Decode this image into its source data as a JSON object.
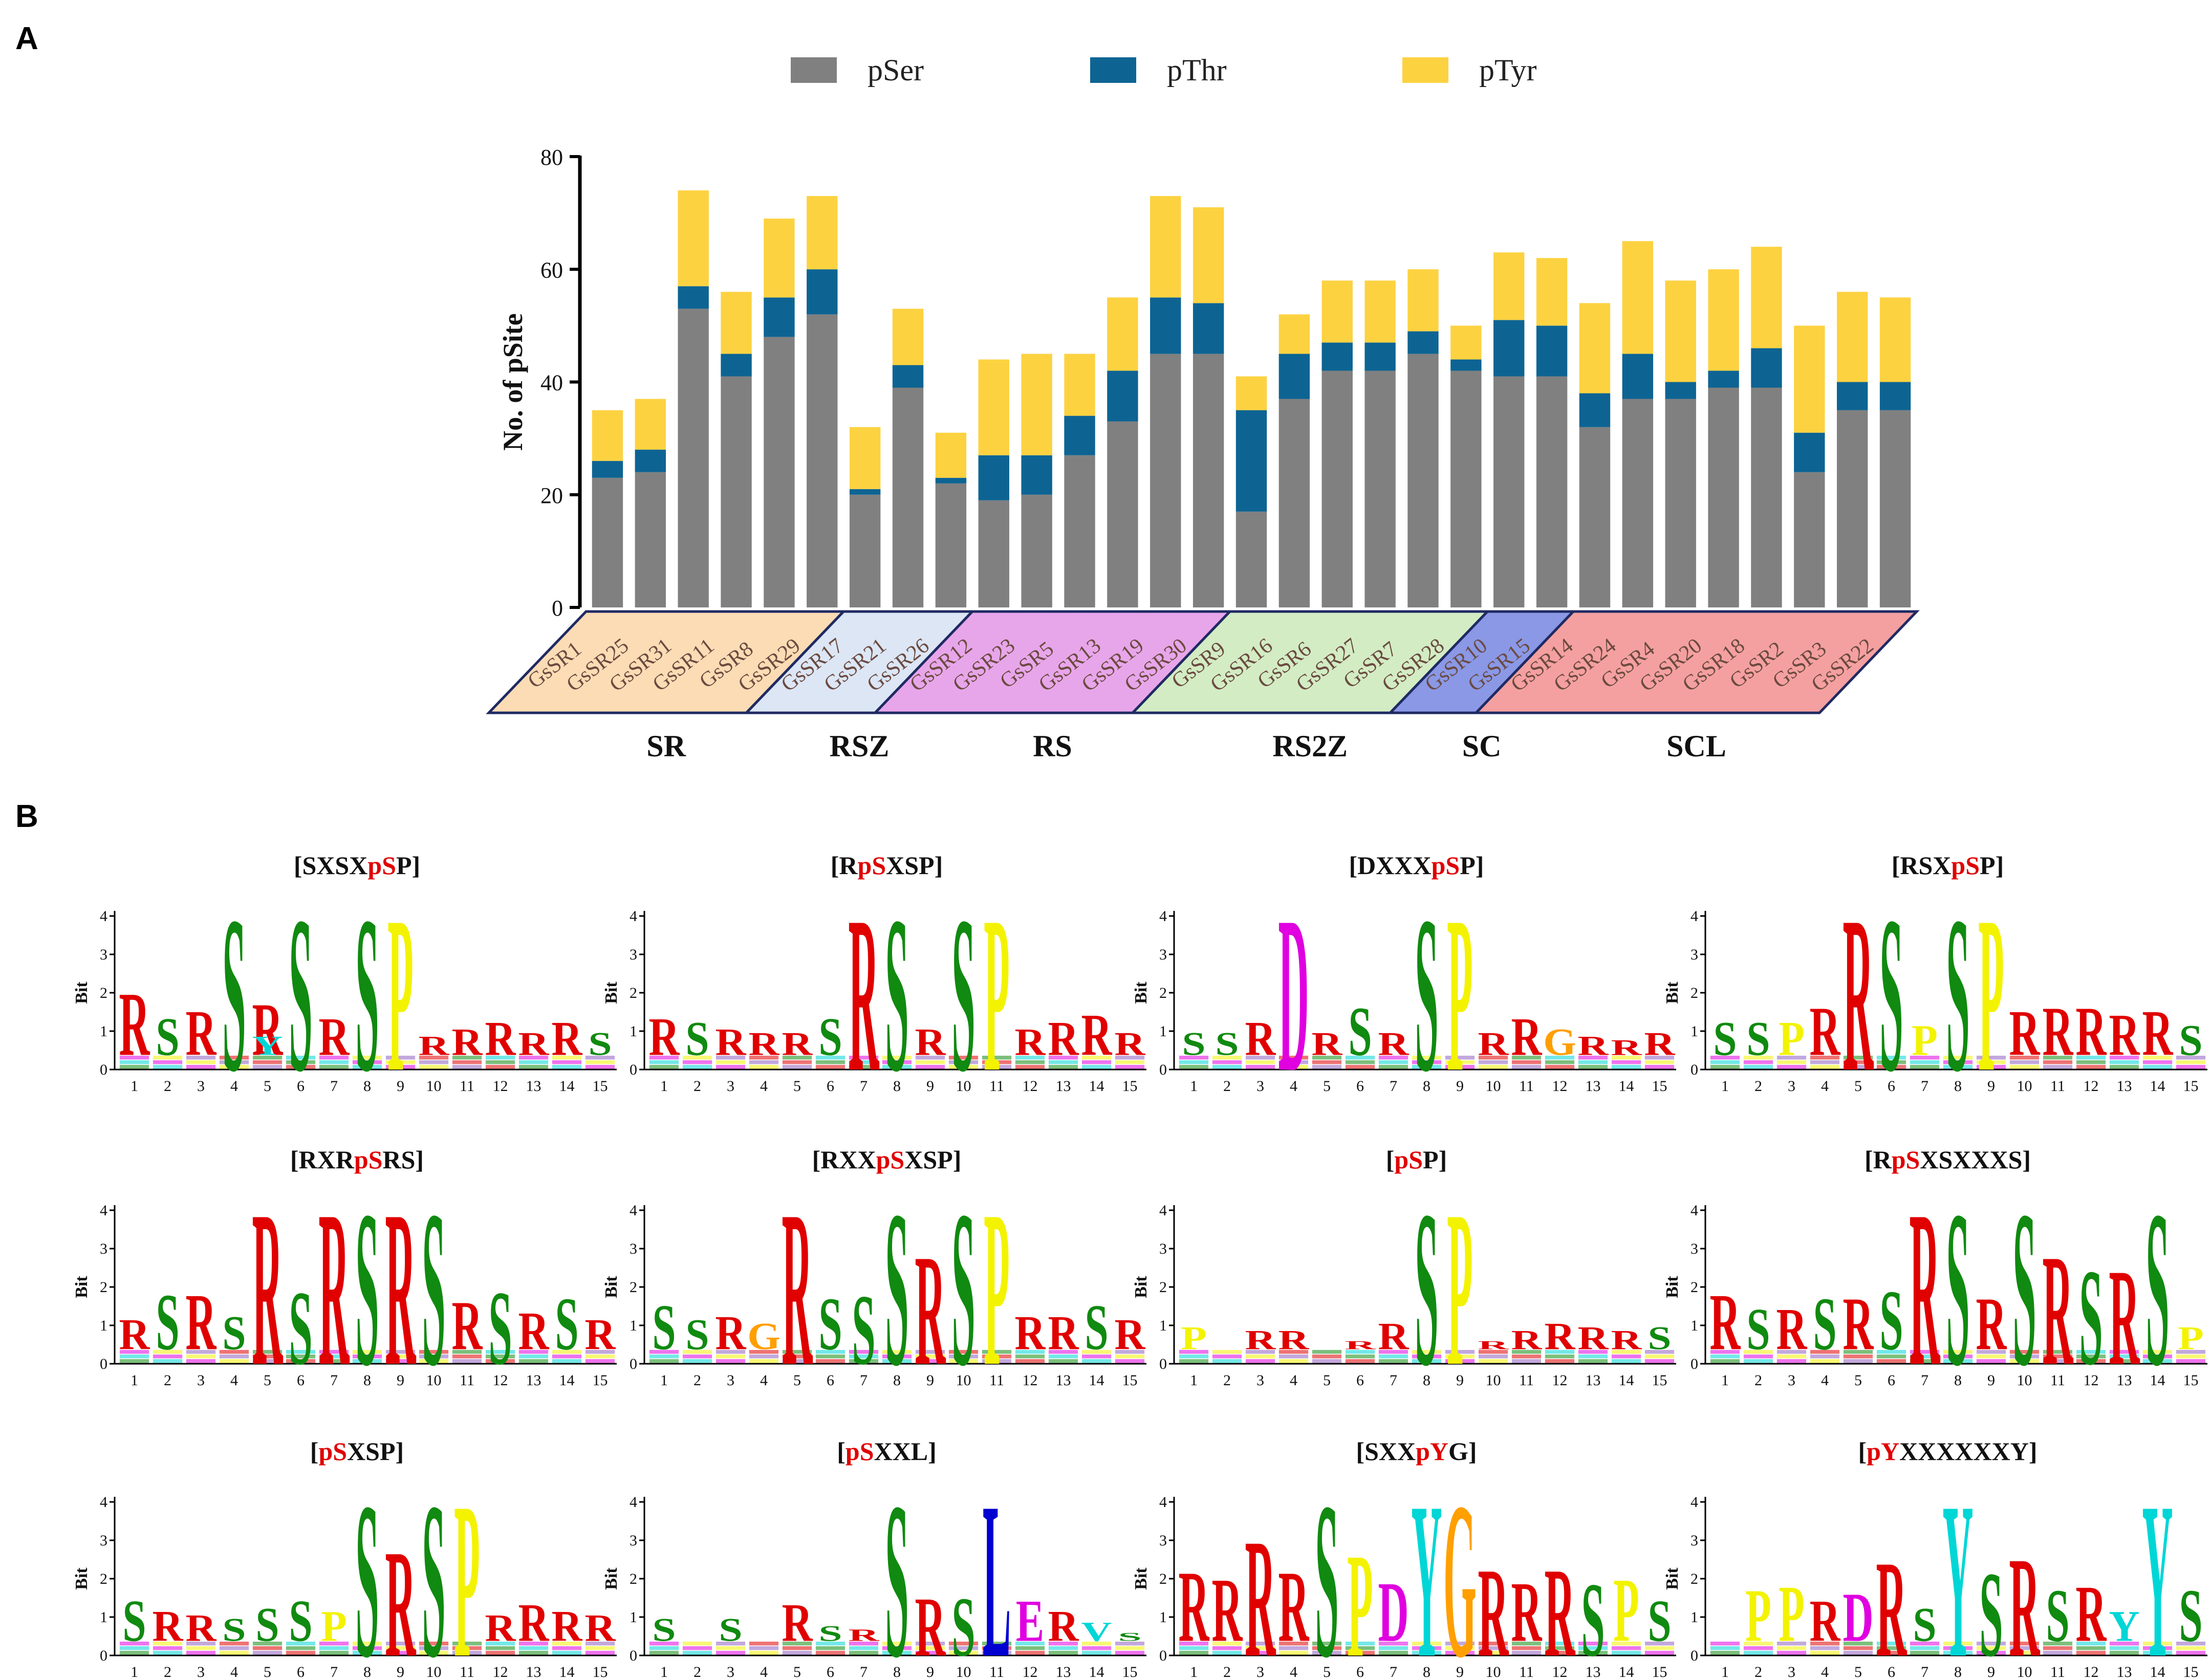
{
  "panels": {
    "a_label": "A",
    "b_label": "B"
  },
  "chart_data": [
    {
      "type": "bar",
      "stacked": true,
      "ylabel": "No. of pSite",
      "ylim": [
        0,
        80
      ],
      "yticks": [
        0,
        20,
        40,
        60,
        80
      ],
      "legend_position": "top",
      "colors": {
        "pSer": "#808080",
        "pThr": "#0d6493",
        "pTyr": "#fdd241"
      },
      "categories": [
        "GsSR1",
        "GsSR25",
        "GsSR31",
        "GsSR11",
        "GsSR8",
        "GsSR29",
        "GsSR17",
        "GsSR21",
        "GsSR26",
        "GsSR12",
        "GsSR23",
        "GsSR5",
        "GsSR13",
        "GsSR19",
        "GsSR30",
        "GsSR9",
        "GsSR16",
        "GsSR6",
        "GsSR27",
        "GsSR7",
        "GsSR28",
        "GsSR10",
        "GsSR15",
        "GsSR14",
        "GsSR24",
        "GsSR4",
        "GsSR20",
        "GsSR18",
        "GsSR2",
        "GsSR3",
        "GsSR22"
      ],
      "series": [
        {
          "name": "pSer",
          "values": [
            23,
            24,
            53,
            41,
            48,
            52,
            20,
            39,
            22,
            19,
            20,
            27,
            33,
            45,
            45,
            17,
            37,
            42,
            42,
            45,
            42,
            41,
            41,
            32,
            37,
            37,
            39,
            39,
            24,
            35,
            35
          ]
        },
        {
          "name": "pThr",
          "values": [
            3,
            4,
            4,
            4,
            7,
            8,
            1,
            4,
            1,
            8,
            7,
            7,
            9,
            10,
            9,
            18,
            8,
            5,
            5,
            4,
            2,
            10,
            9,
            6,
            8,
            3,
            3,
            7,
            7,
            5,
            5
          ]
        },
        {
          "name": "pTyr",
          "values": [
            9,
            9,
            17,
            11,
            14,
            13,
            11,
            10,
            8,
            17,
            18,
            11,
            13,
            18,
            17,
            6,
            7,
            11,
            11,
            11,
            6,
            12,
            12,
            16,
            20,
            18,
            18,
            18,
            19,
            16,
            15
          ]
        }
      ],
      "groups": [
        {
          "name": "SR",
          "count": 6,
          "fill": "#fcdcb4"
        },
        {
          "name": "RSZ",
          "count": 3,
          "fill": "#dce6f5"
        },
        {
          "name": "RS",
          "count": 6,
          "fill": "#e8a6ea"
        },
        {
          "name": "RS2Z",
          "count": 6,
          "fill": "#d3ecc4"
        },
        {
          "name": "SC",
          "count": 2,
          "fill": "#8a98e6"
        },
        {
          "name": "SCL",
          "count": 8,
          "fill": "#f5a0a0"
        }
      ]
    },
    {
      "type": "other",
      "kind": "sequence-logo",
      "ylabel": "Bit",
      "ylim": [
        0,
        4
      ],
      "yticks": [
        0,
        1,
        2,
        3,
        4
      ],
      "positions": [
        1,
        2,
        3,
        4,
        5,
        6,
        7,
        8,
        9,
        10,
        11,
        12,
        13,
        14,
        15
      ],
      "residue_colors": {
        "S": "#108a10",
        "R": "#e00000",
        "P": "#f3f300",
        "D": "#e000e0",
        "Y": "#00d6d6",
        "G": "#ff9f00",
        "L": "#0000d0",
        "V": "#00d6d6",
        "K": "#e00000",
        "E": "#e000e0",
        "T": "#108a10",
        "Q": "#9060c0",
        "N": "#9060c0",
        "A": "#a0a0a0"
      },
      "motifs": [
        {
          "title": [
            {
              "t": "[SXSX",
              "red": false
            },
            {
              "t": "pS",
              "red": true
            },
            {
              "t": "P]",
              "red": false
            }
          ],
          "fg": "S@4:4.2,S@6:4.2,S@8:4.2,P@9:4.2",
          "bg": "R@1:2.1,S@2:1.4,R@3:1.6,R@5:1.8,Y@5:0.9,R@7:1.4,R@10:0.9,R@11:1.1,R@12:1.3,R@13:1.0,R@14:1.3,S@15:1.0"
        },
        {
          "title": [
            {
              "t": "[R",
              "red": false
            },
            {
              "t": "pS",
              "red": true
            },
            {
              "t": "XSP]",
              "red": false
            }
          ],
          "fg": "R@7:4.2,S@8:4.2,S@10:4.2,P@11:4.2",
          "bg": "R@1:1.4,S@2:1.3,R@3:1.1,R@4:1.0,R@5:1.0,S@6:1.4,R@9:1.1,R@12:1.1,R@13:1.3,R@14:1.5,R@15:1.0"
        },
        {
          "title": [
            {
              "t": "[DXXX",
              "red": false
            },
            {
              "t": "pS",
              "red": true
            },
            {
              "t": "P]",
              "red": false
            }
          ],
          "fg": "D@4:4.2,S@8:4.2,P@9:4.2",
          "bg": "S@1:1.0,S@2:1.0,R@3:1.3,R@5:1.0,S@6:1.7,R@7:1.0,R@10:1.0,R@11:1.4,G@12:1.1,R@13:0.9,R@14:0.8,R@15:1.0"
        },
        {
          "title": [
            {
              "t": "[RSX",
              "red": false
            },
            {
              "t": "pS",
              "red": true
            },
            {
              "t": "P]",
              "red": false
            }
          ],
          "fg": "R@5:4.2,S@6:4.2,S@8:4.2,P@9:4.2",
          "bg": "S@1:1.3,S@2:1.3,P@3:1.3,R@4:1.7,P@7:1.2,R@10:1.6,R@11:1.7,R@12:1.7,R@13:1.5,R@14:1.6,S@15:1.2"
        },
        {
          "title": [
            {
              "t": "[RXR",
              "red": false
            },
            {
              "t": "pS",
              "red": true
            },
            {
              "t": "RS]",
              "red": false
            }
          ],
          "fg": "R@5:4.2,S@6:2.0,R@7:4.2,S@8:4.2,R@9:4.2,S@10:4.2,S@12:2.0",
          "bg": "R@1:1.2,S@2:1.9,R@3:1.9,S@4:1.3,R@11:1.7,R@13:1.4,S@14:1.8,R@15:1.2"
        },
        {
          "title": [
            {
              "t": "[RXX",
              "red": false
            },
            {
              "t": "pS",
              "red": true
            },
            {
              "t": "XSP]",
              "red": false
            }
          ],
          "fg": "R@5:4.2,S@7:1.9,S@8:4.2,R@9:3.0,S@10:4.2,P@11:4.2",
          "bg": "S@1:1.6,S@2:1.2,R@3:1.3,G@4:1.1,S@6:1.8,R@12:1.3,R@13:1.3,S@14:1.6,R@15:1.2"
        },
        {
          "title": [
            {
              "t": "[",
              "red": false
            },
            {
              "t": "pS",
              "red": true
            },
            {
              "t": "P]",
              "red": false
            }
          ],
          "fg": "S@8:4.2,P@9:4.2",
          "bg": "P@1:1.0,R@3:0.9,R@4:0.9,R@6:0.6,R@7:1.1,R@10:0.6,R@11:0.9,R@12:1.1,R@13:1.0,R@14:0.9,S@15:1.0"
        },
        {
          "title": [
            {
              "t": "[R",
              "red": false
            },
            {
              "t": "pS",
              "red": true
            },
            {
              "t": "XSXXXS]",
              "red": false
            }
          ],
          "fg": "R@7:4.2,S@8:4.2,S@10:4.2,R@11:3.0,S@12:2.6,R@13:2.6,S@14:4.2",
          "bg": "R@1:1.9,S@2:1.5,R@3:1.5,S@4:1.8,R@5:1.8,S@6:2.0,R@9:1.8,P@15:1.0"
        },
        {
          "title": [
            {
              "t": "[",
              "red": false
            },
            {
              "t": "pS",
              "red": true
            },
            {
              "t": "XSP]",
              "red": false
            }
          ],
          "fg": "S@8:4.2,R@9:2.9,S@10:4.2,P@11:4.2",
          "bg": "S@1:1.5,R@2:1.2,R@3:1.1,S@4:1.0,S@5:1.3,S@6:1.5,P@7:1.2,R@12:1.1,R@13:1.4,R@14:1.2,R@15:1.1"
        },
        {
          "title": [
            {
              "t": "[",
              "red": false
            },
            {
              "t": "pS",
              "red": true
            },
            {
              "t": "XXL]",
              "red": false
            }
          ],
          "fg": "S@8:4.2,R@9:1.6,S@10:1.6,L@11:4.2",
          "bg": "S@1:1.0,S@3:1.0,R@5:1.4,S@6:0.8,R@7:0.7,E@12:1.5,R@13:1.2,V@14:0.9,S@15:0.6"
        },
        {
          "title": [
            {
              "t": "[SXX",
              "red": false
            },
            {
              "t": "pY",
              "red": true
            },
            {
              "t": "G]",
              "red": false
            }
          ],
          "fg": "R@3:3.2,S@5:4.2,P@6:2.8,Y@8:4.2,G@9:4.2,R@10:2.4,R@12:2.4,S@13:2.0",
          "bg": "R@1:2.3,R@2:2.1,R@4:2.3,D@7:2.0,R@11:2.0,P@14:2.1,S@15:1.5"
        },
        {
          "title": [
            {
              "t": "[",
              "red": false
            },
            {
              "t": "pY",
              "red": true
            },
            {
              "t": "XXXXXXY]",
              "red": false
            }
          ],
          "fg": "R@6:2.6,Y@8:4.2,S@9:2.3,R@10:2.7,Y@14:4.2",
          "bg": "P@2:1.8,P@3:1.9,R@4:1.5,D@5:1.7,S@7:1.3,S@11:1.8,R@12:1.9,Y@13:1.2,S@15:1.8"
        }
      ]
    }
  ]
}
